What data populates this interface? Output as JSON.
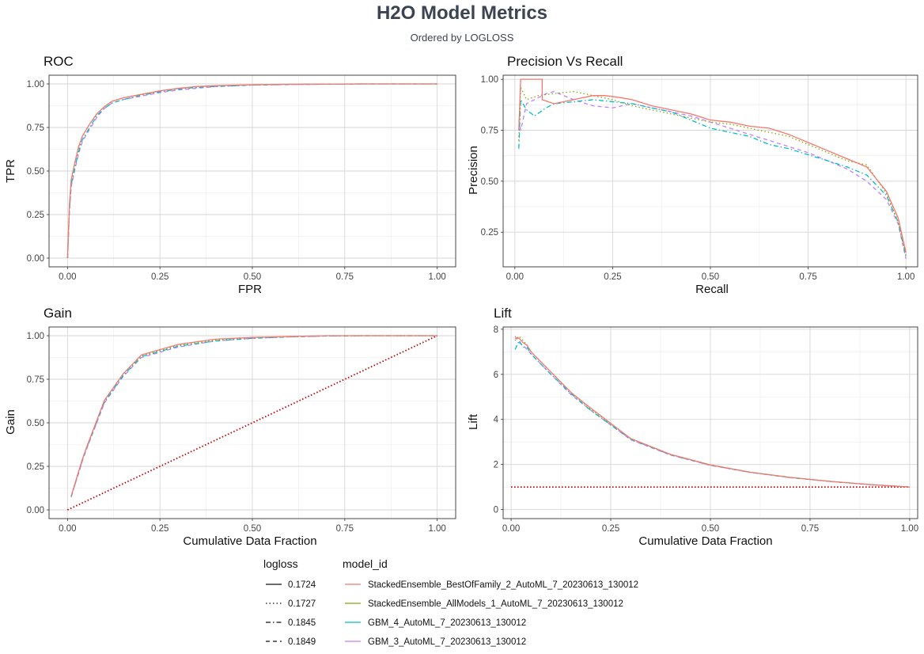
{
  "header": {
    "title": "H2O Model Metrics",
    "subtitle": "Ordered by LOGLOSS"
  },
  "legend": {
    "logloss_title": "logloss",
    "model_title": "model_id",
    "entries": [
      {
        "logloss": "0.1724",
        "linetype": "solid",
        "model_id": "StackedEnsemble_BestOfFamily_2_AutoML_7_20230613_130012",
        "color": "#F8766D"
      },
      {
        "logloss": "0.1727",
        "linetype": "dotted",
        "model_id": "StackedEnsemble_AllModels_1_AutoML_7_20230613_130012",
        "color": "#7CAE00"
      },
      {
        "logloss": "0.1845",
        "linetype": "dashdot",
        "model_id": "GBM_4_AutoML_7_20230613_130012",
        "color": "#00BFC4"
      },
      {
        "logloss": "0.1849",
        "linetype": "dashed",
        "model_id": "GBM_3_AutoML_7_20230613_130012",
        "color": "#C77CFF"
      }
    ]
  },
  "chart_data": [
    {
      "type": "line",
      "title": "ROC",
      "xlabel": "FPR",
      "ylabel": "TPR",
      "xlim": [
        0,
        1
      ],
      "ylim": [
        0,
        1
      ],
      "xticks": [
        0,
        0.25,
        0.5,
        0.75,
        1
      ],
      "xticklabels": [
        "0.00",
        "0.25",
        "0.50",
        "0.75",
        "1.00"
      ],
      "yticks": [
        0,
        0.25,
        0.5,
        0.75,
        1
      ],
      "yticklabels": [
        "0.00",
        "0.25",
        "0.50",
        "0.75",
        "1.00"
      ],
      "grid": true,
      "series": [
        {
          "x": [
            0,
            0.005,
            0.01,
            0.02,
            0.03,
            0.04,
            0.06,
            0.08,
            0.1,
            0.12,
            0.15,
            0.2,
            0.25,
            0.3,
            0.35,
            0.4,
            0.5,
            0.6,
            0.8,
            1.0
          ],
          "y": [
            0,
            0.3,
            0.45,
            0.55,
            0.64,
            0.7,
            0.77,
            0.83,
            0.87,
            0.9,
            0.92,
            0.94,
            0.96,
            0.975,
            0.985,
            0.99,
            0.995,
            0.998,
            1.0,
            1.0
          ]
        },
        {
          "x": [
            0,
            0.005,
            0.01,
            0.02,
            0.03,
            0.04,
            0.06,
            0.08,
            0.1,
            0.12,
            0.15,
            0.2,
            0.25,
            0.3,
            0.35,
            0.4,
            0.5,
            0.6,
            0.8,
            1.0
          ],
          "y": [
            0,
            0.29,
            0.44,
            0.55,
            0.63,
            0.7,
            0.77,
            0.83,
            0.87,
            0.9,
            0.92,
            0.94,
            0.96,
            0.973,
            0.984,
            0.99,
            0.995,
            0.998,
            1.0,
            1.0
          ]
        },
        {
          "x": [
            0,
            0.005,
            0.01,
            0.02,
            0.03,
            0.04,
            0.06,
            0.08,
            0.1,
            0.12,
            0.15,
            0.2,
            0.25,
            0.3,
            0.35,
            0.4,
            0.5,
            0.6,
            0.8,
            1.0
          ],
          "y": [
            0,
            0.27,
            0.42,
            0.52,
            0.61,
            0.68,
            0.75,
            0.82,
            0.86,
            0.89,
            0.91,
            0.935,
            0.955,
            0.97,
            0.98,
            0.985,
            0.993,
            0.997,
            1.0,
            1.0
          ]
        },
        {
          "x": [
            0,
            0.005,
            0.01,
            0.02,
            0.03,
            0.04,
            0.06,
            0.08,
            0.1,
            0.12,
            0.15,
            0.2,
            0.25,
            0.3,
            0.35,
            0.4,
            0.5,
            0.6,
            0.8,
            1.0
          ],
          "y": [
            0,
            0.26,
            0.41,
            0.51,
            0.6,
            0.67,
            0.74,
            0.81,
            0.86,
            0.89,
            0.91,
            0.93,
            0.95,
            0.965,
            0.975,
            0.985,
            0.993,
            0.997,
            1.0,
            1.0
          ]
        }
      ]
    },
    {
      "type": "line",
      "title": "Precision Vs Recall",
      "xlabel": "Recall",
      "ylabel": "Precision",
      "xlim": [
        -0.03,
        1.03
      ],
      "ylim": [
        0.08,
        1.02
      ],
      "xticks": [
        0,
        0.25,
        0.5,
        0.75,
        1
      ],
      "xticklabels": [
        "0.00",
        "0.25",
        "0.50",
        "0.75",
        "1.00"
      ],
      "yticks": [
        0.25,
        0.5,
        0.75,
        1
      ],
      "yticklabels": [
        "0.25",
        "0.50",
        "0.75",
        "1.00"
      ],
      "grid": true,
      "series": [
        {
          "x": [
            0.01,
            0.015,
            0.03,
            0.07,
            0.07,
            0.1,
            0.15,
            0.2,
            0.23,
            0.27,
            0.3,
            0.35,
            0.4,
            0.45,
            0.5,
            0.55,
            0.6,
            0.65,
            0.7,
            0.75,
            0.8,
            0.85,
            0.9,
            0.95,
            0.98,
            1.0
          ],
          "y": [
            0.75,
            1.0,
            1.0,
            1.0,
            0.9,
            0.88,
            0.9,
            0.92,
            0.92,
            0.91,
            0.9,
            0.87,
            0.85,
            0.83,
            0.8,
            0.79,
            0.77,
            0.76,
            0.73,
            0.69,
            0.65,
            0.61,
            0.57,
            0.45,
            0.32,
            0.15
          ]
        },
        {
          "x": [
            0.01,
            0.015,
            0.03,
            0.06,
            0.1,
            0.15,
            0.2,
            0.25,
            0.3,
            0.35,
            0.4,
            0.45,
            0.5,
            0.55,
            0.6,
            0.65,
            0.7,
            0.75,
            0.8,
            0.85,
            0.9,
            0.95,
            0.98,
            1.0
          ],
          "y": [
            0.7,
            0.96,
            0.9,
            0.92,
            0.93,
            0.94,
            0.92,
            0.9,
            0.87,
            0.85,
            0.83,
            0.81,
            0.79,
            0.78,
            0.76,
            0.74,
            0.72,
            0.68,
            0.64,
            0.6,
            0.58,
            0.44,
            0.3,
            0.14
          ]
        },
        {
          "x": [
            0.01,
            0.015,
            0.03,
            0.05,
            0.08,
            0.1,
            0.15,
            0.2,
            0.25,
            0.3,
            0.35,
            0.4,
            0.45,
            0.5,
            0.55,
            0.6,
            0.65,
            0.7,
            0.75,
            0.8,
            0.85,
            0.9,
            0.95,
            0.98,
            1.0
          ],
          "y": [
            0.66,
            0.9,
            0.85,
            0.82,
            0.86,
            0.88,
            0.89,
            0.9,
            0.89,
            0.88,
            0.86,
            0.84,
            0.8,
            0.76,
            0.74,
            0.72,
            0.68,
            0.66,
            0.63,
            0.6,
            0.57,
            0.53,
            0.43,
            0.3,
            0.13
          ]
        },
        {
          "x": [
            0.01,
            0.015,
            0.03,
            0.05,
            0.08,
            0.1,
            0.15,
            0.2,
            0.25,
            0.3,
            0.35,
            0.4,
            0.45,
            0.5,
            0.55,
            0.6,
            0.65,
            0.7,
            0.75,
            0.8,
            0.85,
            0.9,
            0.95,
            0.98,
            1.0
          ],
          "y": [
            0.8,
            0.75,
            0.88,
            0.9,
            0.93,
            0.94,
            0.9,
            0.87,
            0.86,
            0.88,
            0.86,
            0.84,
            0.82,
            0.79,
            0.76,
            0.73,
            0.7,
            0.67,
            0.64,
            0.6,
            0.56,
            0.5,
            0.41,
            0.29,
            0.12
          ]
        }
      ]
    },
    {
      "type": "line",
      "title": "Gain",
      "xlabel": "Cumulative Data Fraction",
      "ylabel": "Gain",
      "xlim": [
        0,
        1
      ],
      "ylim": [
        0,
        1
      ],
      "xticks": [
        0,
        0.25,
        0.5,
        0.75,
        1
      ],
      "xticklabels": [
        "0.00",
        "0.25",
        "0.50",
        "0.75",
        "1.00"
      ],
      "yticks": [
        0,
        0.25,
        0.5,
        0.75,
        1
      ],
      "yticklabels": [
        "0.00",
        "0.25",
        "0.50",
        "0.75",
        "1.00"
      ],
      "grid": true,
      "baseline": {
        "x": [
          0,
          1
        ],
        "y": [
          0,
          1
        ],
        "color": "#c00000"
      },
      "series": [
        {
          "x": [
            0.01,
            0.02,
            0.03,
            0.04,
            0.05,
            0.1,
            0.15,
            0.2,
            0.3,
            0.4,
            0.5,
            0.6,
            0.7,
            0.8,
            0.9,
            1.0
          ],
          "y": [
            0.08,
            0.15,
            0.22,
            0.29,
            0.35,
            0.63,
            0.78,
            0.89,
            0.95,
            0.98,
            0.99,
            0.995,
            1.0,
            1.0,
            1.0,
            1.0
          ]
        },
        {
          "x": [
            0.01,
            0.02,
            0.03,
            0.04,
            0.05,
            0.1,
            0.15,
            0.2,
            0.3,
            0.4,
            0.5,
            0.6,
            0.7,
            0.8,
            0.9,
            1.0
          ],
          "y": [
            0.08,
            0.15,
            0.22,
            0.29,
            0.35,
            0.63,
            0.78,
            0.885,
            0.945,
            0.975,
            0.99,
            0.995,
            1.0,
            1.0,
            1.0,
            1.0
          ]
        },
        {
          "x": [
            0.01,
            0.02,
            0.03,
            0.04,
            0.05,
            0.1,
            0.15,
            0.2,
            0.3,
            0.4,
            0.5,
            0.6,
            0.7,
            0.8,
            0.9,
            1.0
          ],
          "y": [
            0.075,
            0.145,
            0.215,
            0.285,
            0.345,
            0.62,
            0.77,
            0.88,
            0.94,
            0.97,
            0.985,
            0.993,
            0.998,
            1.0,
            1.0,
            1.0
          ]
        },
        {
          "x": [
            0.01,
            0.02,
            0.03,
            0.04,
            0.05,
            0.1,
            0.15,
            0.2,
            0.3,
            0.4,
            0.5,
            0.6,
            0.7,
            0.8,
            0.9,
            1.0
          ],
          "y": [
            0.075,
            0.145,
            0.21,
            0.28,
            0.34,
            0.615,
            0.765,
            0.875,
            0.935,
            0.97,
            0.985,
            0.993,
            0.998,
            1.0,
            1.0,
            1.0
          ]
        }
      ]
    },
    {
      "type": "line",
      "title": "Lift",
      "xlabel": "Cumulative Data Fraction",
      "ylabel": "Lift",
      "xlim": [
        -0.02,
        1.02
      ],
      "ylim": [
        -0.4,
        8.1
      ],
      "xticks": [
        0,
        0.25,
        0.5,
        0.75,
        1
      ],
      "xticklabels": [
        "0.00",
        "0.25",
        "0.50",
        "0.75",
        "1.00"
      ],
      "yticks": [
        0,
        2,
        4,
        6,
        8
      ],
      "yticklabels": [
        "0",
        "2",
        "4",
        "6",
        "8"
      ],
      "grid": true,
      "baseline": {
        "x": [
          0,
          1
        ],
        "y": [
          1,
          1
        ],
        "color": "#c00000"
      },
      "series": [
        {
          "x": [
            0.01,
            0.02,
            0.03,
            0.04,
            0.05,
            0.1,
            0.15,
            0.2,
            0.3,
            0.4,
            0.5,
            0.6,
            0.7,
            0.8,
            0.9,
            1.0
          ],
          "y": [
            7.6,
            7.6,
            7.4,
            7.3,
            7.0,
            6.1,
            5.2,
            4.5,
            3.15,
            2.45,
            1.98,
            1.66,
            1.43,
            1.25,
            1.11,
            1.0
          ]
        },
        {
          "x": [
            0.01,
            0.02,
            0.03,
            0.04,
            0.05,
            0.1,
            0.15,
            0.2,
            0.3,
            0.4,
            0.5,
            0.6,
            0.7,
            0.8,
            0.9,
            1.0
          ],
          "y": [
            7.5,
            7.7,
            7.5,
            7.3,
            7.0,
            6.1,
            5.2,
            4.45,
            3.15,
            2.45,
            1.98,
            1.66,
            1.43,
            1.25,
            1.11,
            1.0
          ]
        },
        {
          "x": [
            0.01,
            0.02,
            0.03,
            0.04,
            0.05,
            0.1,
            0.15,
            0.2,
            0.3,
            0.4,
            0.5,
            0.6,
            0.7,
            0.8,
            0.9,
            1.0
          ],
          "y": [
            7.1,
            7.5,
            7.2,
            7.2,
            6.9,
            6.0,
            5.15,
            4.4,
            3.12,
            2.43,
            1.97,
            1.65,
            1.42,
            1.25,
            1.11,
            1.0
          ]
        },
        {
          "x": [
            0.01,
            0.02,
            0.03,
            0.04,
            0.05,
            0.1,
            0.15,
            0.2,
            0.3,
            0.4,
            0.5,
            0.6,
            0.7,
            0.8,
            0.9,
            1.0
          ],
          "y": [
            7.7,
            7.4,
            7.3,
            7.1,
            6.9,
            6.0,
            5.1,
            4.4,
            3.1,
            2.42,
            1.96,
            1.65,
            1.42,
            1.25,
            1.11,
            1.0
          ]
        }
      ]
    }
  ]
}
